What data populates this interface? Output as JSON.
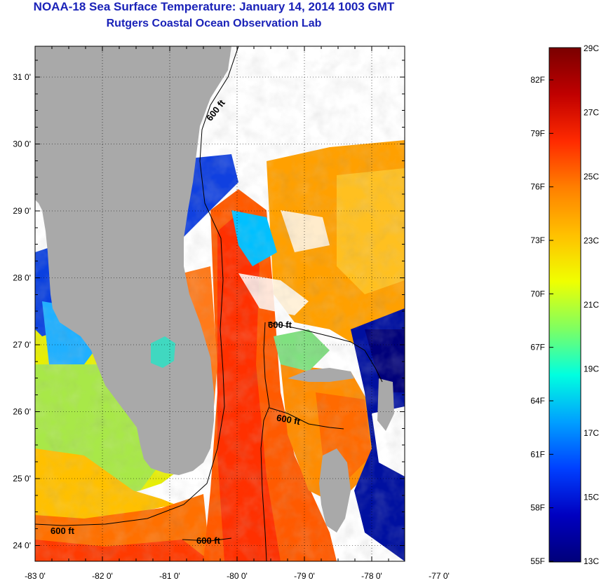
{
  "title": {
    "line1": "NOAA-18 Sea Surface Temperature:  January 14, 2014 1003 GMT",
    "line2": "Rutgers Coastal Ocean Observation Lab"
  },
  "map": {
    "lon_ticks": [
      "-83 0'",
      "-82 0'",
      "-81 0'",
      "-80 0'",
      "-79 0'",
      "-78 0'",
      "-77 0'"
    ],
    "lat_ticks": [
      "31 0'",
      "30 0'",
      "29 0'",
      "28 0'",
      "27 0'",
      "26 0'",
      "25 0'",
      "24 0'"
    ],
    "contour_label": "600 ft",
    "contour_labels": [
      "600 ft",
      "600 ft",
      "600 ft",
      "600 ft",
      "600 ft"
    ]
  },
  "colorbar": {
    "celsius": [
      "29C",
      "27C",
      "25C",
      "23C",
      "21C",
      "19C",
      "17C",
      "15C",
      "13C"
    ],
    "fahrenheit": [
      "82F",
      "79F",
      "76F",
      "73F",
      "70F",
      "67F",
      "64F",
      "61F",
      "58F",
      "55F"
    ],
    "colors": [
      "#7a0000",
      "#c00000",
      "#ff2a00",
      "#ff8000",
      "#ffc000",
      "#f0ff00",
      "#80ff60",
      "#00ffe0",
      "#00a0ff",
      "#0040ff",
      "#0000c0",
      "#00007a"
    ]
  },
  "colors": {
    "land": "#a9a9a9",
    "title": "#1a22b8",
    "cloud": "#ffffff"
  }
}
